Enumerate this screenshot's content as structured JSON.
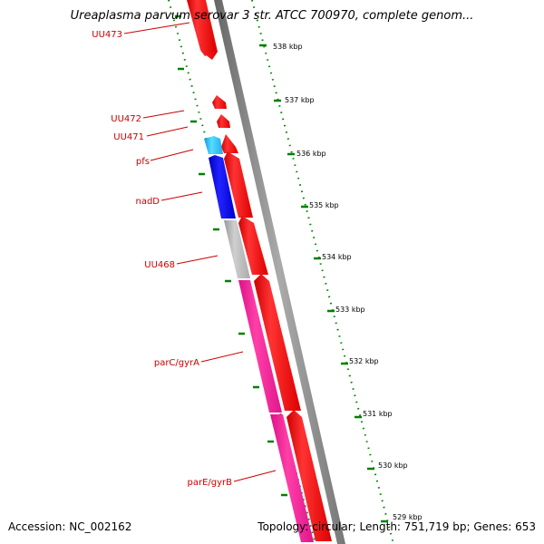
{
  "title": "Ureaplasma parvum serovar 3 str. ATCC 700970, complete genom...",
  "footer": {
    "accession": "Accession: NC_002162",
    "topology": "Topology: circular; Length: 751,719 bp; Genes: 653"
  },
  "colors": {
    "forward_cds": "#ff0000",
    "backbone": "#808080",
    "tick_marks": "#008000",
    "label_text": "#cc0000",
    "UU473": "#ff0000",
    "UU472": "#ff0000",
    "UU471": "#ff0000",
    "pfs": "#33ccff",
    "nadD": "#0000ee",
    "UU468": "#bbbbbb",
    "parC/gyrA": "#ff2a9a",
    "parE/gyrB": "#ff2a9a"
  },
  "scale_labels": [
    "538 kbp",
    "537 kbp",
    "536 kbp",
    "535 kbp",
    "534 kbp",
    "533 kbp",
    "532 kbp",
    "531 kbp",
    "530 kbp",
    "529 kbp"
  ],
  "gene_labels": [
    "UU473",
    "UU472",
    "UU471",
    "pfs",
    "nadD",
    "UU468",
    "parC/gyrA",
    "parE/gyrB"
  ]
}
